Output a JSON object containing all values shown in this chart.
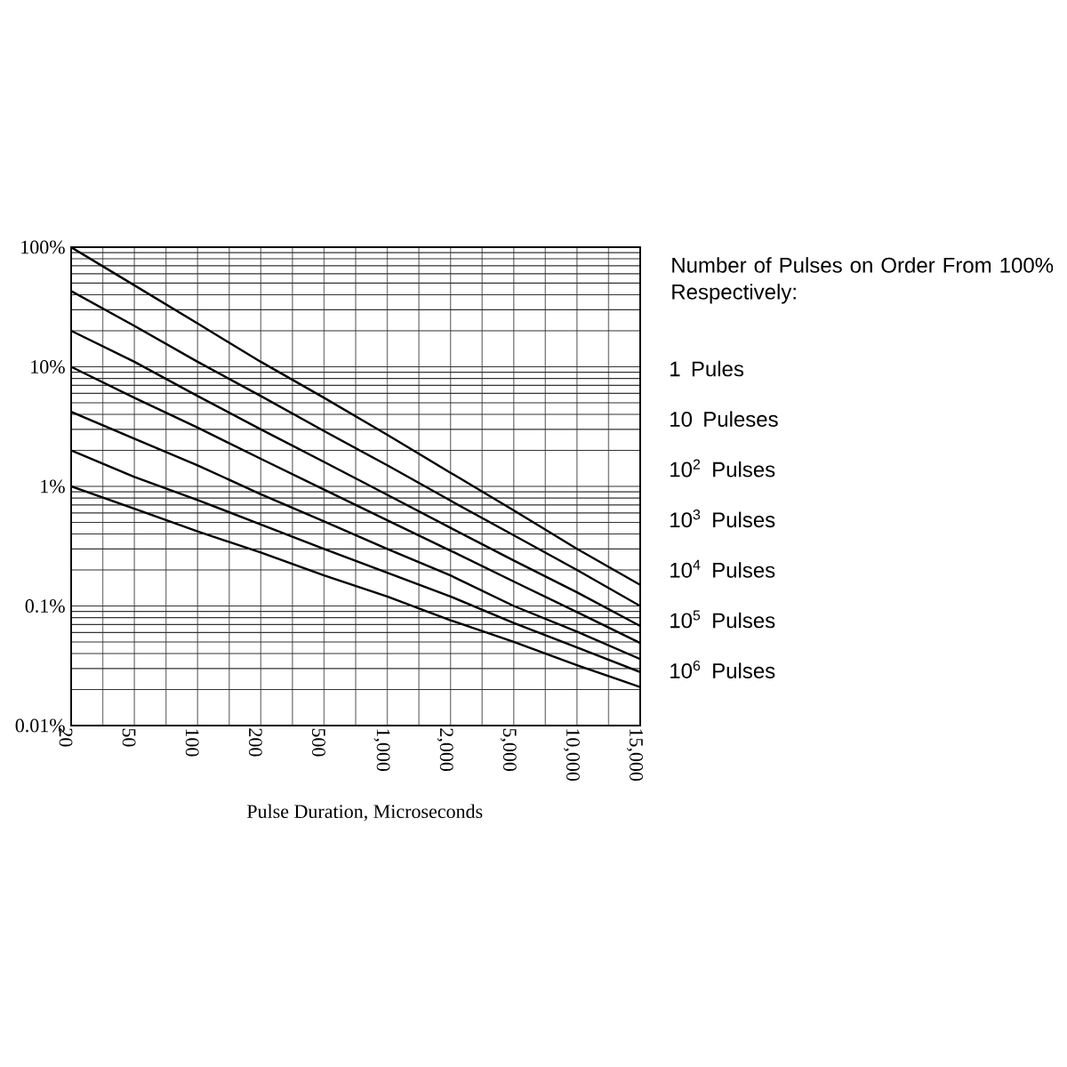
{
  "chart_data": {
    "type": "line",
    "xlabel": "Pulse Duration, Microseconds",
    "legend_title": "Number of Pulses on Order From 100% Respectively:",
    "categories": [
      "20",
      "50",
      "100",
      "200",
      "500",
      "1,000",
      "2,000",
      "5,000",
      "10,000",
      "15,000"
    ],
    "ylim": [
      0.01,
      100
    ],
    "yticks": [
      {
        "value": 0.01,
        "label": "0.01%"
      },
      {
        "value": 0.1,
        "label": "0.1%"
      },
      {
        "value": 1,
        "label": "1%"
      },
      {
        "value": 10,
        "label": "10%"
      },
      {
        "value": 100,
        "label": "100%"
      }
    ],
    "log": "y",
    "grid": true,
    "legend": "right",
    "marker": "none",
    "series": [
      {
        "name": "1 Pules",
        "color": "#000000",
        "values": [
          100,
          48,
          23,
          11,
          5.5,
          2.7,
          1.3,
          0.63,
          0.3,
          0.15
        ]
      },
      {
        "name": "10 Puleses",
        "color": "#000000",
        "values": [
          43,
          22,
          11,
          5.7,
          2.9,
          1.5,
          0.76,
          0.39,
          0.2,
          0.1
        ]
      },
      {
        "name": "10$^{2}$ Pulses",
        "color": "#000000",
        "values": [
          20,
          11,
          5.7,
          3.0,
          1.6,
          0.85,
          0.45,
          0.24,
          0.13,
          0.068
        ]
      },
      {
        "name": "10$^{3}$ Pulses",
        "color": "#000000",
        "values": [
          10,
          5.5,
          3.1,
          1.7,
          0.94,
          0.52,
          0.29,
          0.16,
          0.089,
          0.049
        ]
      },
      {
        "name": "10$^{4}$ Pulses",
        "color": "#000000",
        "values": [
          4.2,
          2.5,
          1.5,
          0.86,
          0.51,
          0.3,
          0.18,
          0.1,
          0.061,
          0.036
        ]
      },
      {
        "name": "10$^{5}$ Pulses",
        "color": "#000000",
        "values": [
          2.0,
          1.2,
          0.77,
          0.48,
          0.3,
          0.19,
          0.12,
          0.072,
          0.045,
          0.028
        ]
      },
      {
        "name": "10$^{6}$ Pulses",
        "color": "#000000",
        "values": [
          1.0,
          0.65,
          0.42,
          0.28,
          0.18,
          0.12,
          0.076,
          0.05,
          0.032,
          0.021
        ]
      }
    ]
  }
}
